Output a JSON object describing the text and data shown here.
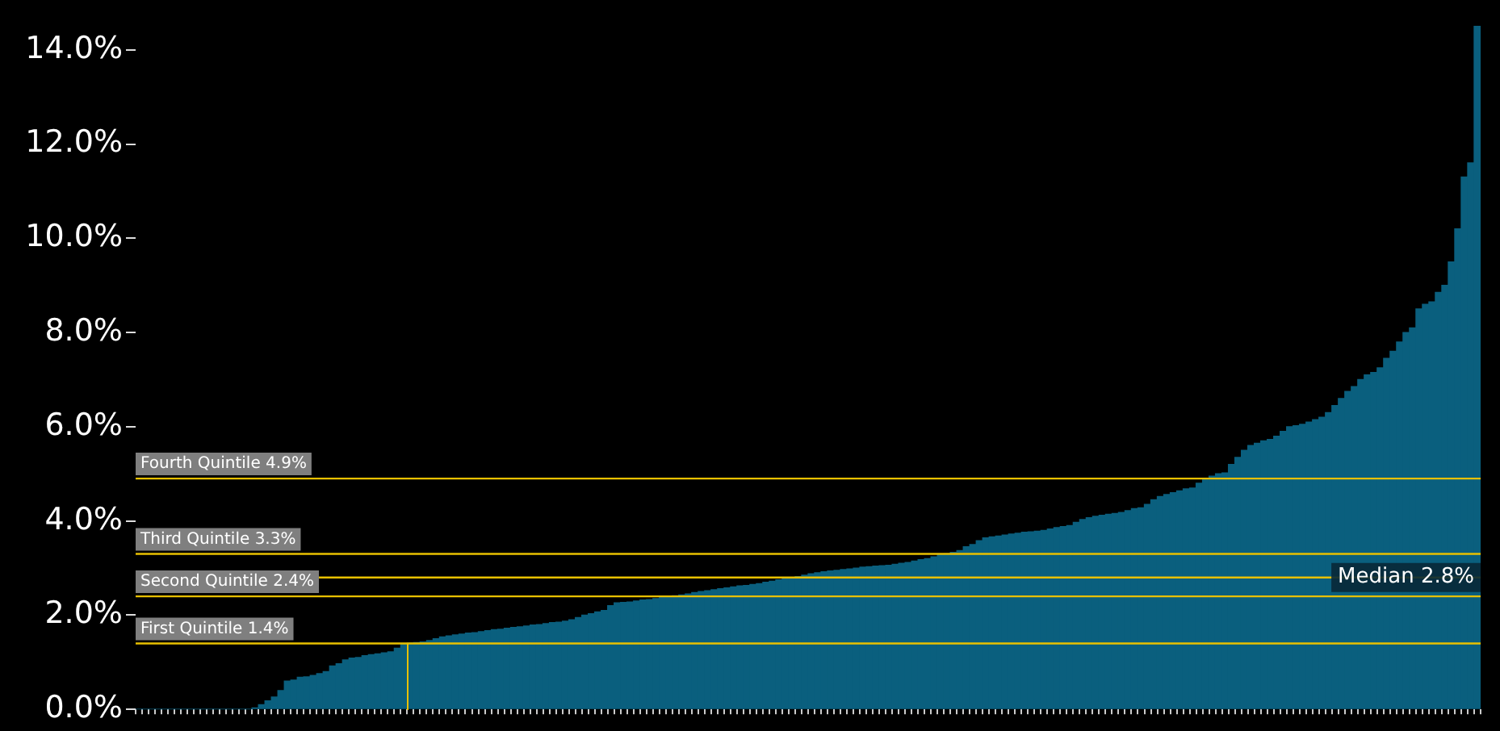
{
  "chart_data": {
    "type": "bar",
    "categories": [
      null,
      null,
      null,
      null,
      null,
      null,
      null,
      null,
      null,
      null,
      null,
      null,
      null,
      null,
      null,
      null,
      null,
      null,
      null,
      null,
      null,
      null,
      null,
      null,
      null,
      null,
      null,
      null,
      null,
      null,
      null,
      null,
      null,
      null,
      null,
      null,
      null,
      null,
      null,
      null,
      null,
      null,
      null,
      null,
      null,
      null,
      null,
      null,
      null,
      null,
      null,
      null,
      null,
      null,
      null,
      null,
      null,
      null,
      null,
      null,
      null,
      null,
      null,
      null,
      null,
      null,
      null,
      null,
      null,
      null,
      null,
      null,
      null,
      null,
      null,
      null,
      null,
      null,
      null,
      null,
      null,
      null,
      null,
      null,
      null,
      null,
      null,
      null,
      null,
      null,
      null,
      null,
      null,
      null,
      null,
      null,
      null,
      null,
      null,
      null,
      null,
      null,
      null,
      null,
      null,
      null,
      null,
      null,
      null,
      null,
      null,
      null,
      null,
      null,
      null,
      null,
      null,
      null,
      null,
      null,
      null,
      null,
      null,
      null,
      null,
      null,
      null,
      null,
      null,
      null,
      null,
      null,
      null,
      null,
      null,
      null,
      null,
      null,
      null,
      null,
      null,
      null,
      null,
      null,
      null,
      null,
      null,
      null,
      null,
      null,
      null,
      null,
      null,
      null,
      null,
      null,
      null,
      null,
      null,
      null,
      null,
      null,
      null,
      null,
      null,
      null,
      null,
      null,
      null,
      null,
      null,
      null,
      null,
      null,
      null,
      null,
      null,
      null,
      null,
      null,
      null,
      null,
      null,
      null,
      null,
      null,
      null,
      null,
      null,
      null,
      null,
      null,
      null,
      null,
      null,
      null,
      null,
      null,
      null,
      null,
      null,
      null,
      null,
      null,
      null,
      null,
      null,
      null
    ],
    "values": [
      0,
      0,
      0,
      0,
      0,
      0,
      0,
      0,
      0,
      0,
      0,
      0,
      0,
      0,
      0,
      0,
      0,
      0,
      0.03,
      0.1,
      0.18,
      0.26,
      0.4,
      0.6,
      0.62,
      0.68,
      0.69,
      0.72,
      0.76,
      0.8,
      0.92,
      0.97,
      1.05,
      1.09,
      1.1,
      1.14,
      1.16,
      1.18,
      1.2,
      1.22,
      1.3,
      1.38,
      1.41,
      1.42,
      1.43,
      1.46,
      1.5,
      1.54,
      1.56,
      1.58,
      1.6,
      1.62,
      1.63,
      1.65,
      1.67,
      1.69,
      1.7,
      1.72,
      1.74,
      1.75,
      1.77,
      1.79,
      1.8,
      1.82,
      1.84,
      1.85,
      1.87,
      1.9,
      1.95,
      2.0,
      2.03,
      2.07,
      2.1,
      2.2,
      2.26,
      2.27,
      2.28,
      2.3,
      2.32,
      2.33,
      2.35,
      2.38,
      2.4,
      2.41,
      2.43,
      2.45,
      2.48,
      2.5,
      2.52,
      2.54,
      2.56,
      2.58,
      2.6,
      2.62,
      2.63,
      2.65,
      2.67,
      2.7,
      2.72,
      2.75,
      2.78,
      2.8,
      2.82,
      2.85,
      2.88,
      2.9,
      2.92,
      2.94,
      2.95,
      2.97,
      2.98,
      3.0,
      3.02,
      3.03,
      3.04,
      3.05,
      3.06,
      3.08,
      3.1,
      3.12,
      3.15,
      3.18,
      3.2,
      3.24,
      3.28,
      3.3,
      3.33,
      3.37,
      3.45,
      3.5,
      3.58,
      3.64,
      3.66,
      3.68,
      3.7,
      3.72,
      3.74,
      3.76,
      3.77,
      3.78,
      3.8,
      3.83,
      3.86,
      3.88,
      3.9,
      3.97,
      4.03,
      4.07,
      4.1,
      4.12,
      4.14,
      4.16,
      4.18,
      4.22,
      4.26,
      4.28,
      4.35,
      4.45,
      4.52,
      4.56,
      4.6,
      4.64,
      4.68,
      4.7,
      4.8,
      4.9,
      4.95,
      5.0,
      5.02,
      5.2,
      5.35,
      5.5,
      5.6,
      5.65,
      5.7,
      5.73,
      5.8,
      5.9,
      6.0,
      6.02,
      6.05,
      6.1,
      6.15,
      6.2,
      6.3,
      6.45,
      6.6,
      6.75,
      6.85,
      7.0,
      7.1,
      7.15,
      7.25,
      7.45,
      7.6,
      7.8,
      8.0,
      8.1,
      8.5,
      8.6,
      8.65,
      8.85,
      9.0,
      9.5,
      10.2,
      11.3,
      11.6,
      14.5
    ],
    "color": "#0a5f7e",
    "ylim": [
      0,
      14.6
    ],
    "yticks": [
      {
        "value": 0,
        "label": "0.0%"
      },
      {
        "value": 2,
        "label": "2.0%"
      },
      {
        "value": 4,
        "label": "4.0%"
      },
      {
        "value": 6,
        "label": "6.0%"
      },
      {
        "value": 8,
        "label": "8.0%"
      },
      {
        "value": 10,
        "label": "10.0%"
      },
      {
        "value": 12,
        "label": "12.0%"
      },
      {
        "value": 14,
        "label": "14.0%"
      }
    ],
    "tick_labels": "y",
    "grid": false,
    "legend": false,
    "ref_lines": [
      {
        "axis": "y",
        "value": 1.4,
        "label": "First Quintile 1.4%",
        "color": "#e8c000"
      },
      {
        "axis": "y",
        "value": 2.4,
        "label": "Second Quintile 2.4%",
        "color": "#e8c000"
      },
      {
        "axis": "y",
        "value": 3.3,
        "label": "Third Quintile 3.3%",
        "color": "#e8c000"
      },
      {
        "axis": "y",
        "value": 4.9,
        "label": "Fourth Quintile 4.9%",
        "color": "#e8c000"
      },
      {
        "axis": "y",
        "value": 2.8,
        "label": "Median 2.8%",
        "color": "#e8c000"
      }
    ]
  }
}
